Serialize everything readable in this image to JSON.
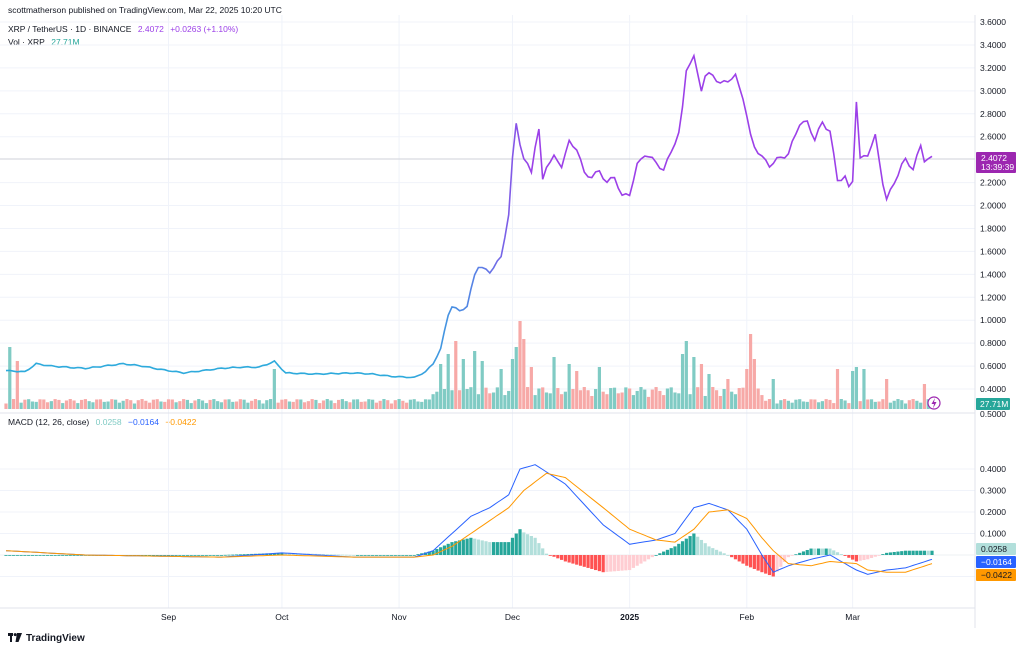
{
  "header": {
    "published": "scottmatherson published on TradingView.com, Mar 22, 2025 10:20 UTC"
  },
  "legend": {
    "symbol": "XRP / TetherUS · 1D · BINANCE",
    "price": "2.4072",
    "change": "+0.0263 (+1.10%)",
    "vol_label": "Vol · XRP",
    "vol_value": "27.71M",
    "macd_label": "MACD (12, 26, close)",
    "macd_hist": "0.0258",
    "macd_line": "−0.0164",
    "macd_signal": "−0.0422"
  },
  "price_axis": {
    "ticks": [
      "3.6000",
      "3.4000",
      "3.2000",
      "3.0000",
      "2.8000",
      "2.6000",
      "2.2000",
      "2.0000",
      "1.8000",
      "1.6000",
      "1.4000",
      "1.2000",
      "1.0000",
      "0.8000",
      "0.6000",
      "0.4000"
    ],
    "last_price": "2.4072",
    "countdown": "13:39:39",
    "vol_badge": "27.71M",
    "bottom_tick": "0.5000"
  },
  "macd_axis": {
    "ticks": [
      "0.4000",
      "0.3000",
      "0.2000",
      "0.1000",
      "−0.1000"
    ],
    "hist_badge": "0.0258",
    "macd_badge": "−0.0164",
    "signal_badge": "−0.0422"
  },
  "time_axis": {
    "labels": [
      "Sep",
      "Oct",
      "Nov",
      "Dec",
      "2025",
      "Feb",
      "Mar"
    ]
  },
  "footer": {
    "brand": "TradingView"
  },
  "colors": {
    "price_line_early": "#2eaadc",
    "price_line_late": "#9c40e8",
    "vol_up": "#80cbc4",
    "vol_down": "#f7a9a7",
    "macd_line": "#2962ff",
    "signal_line": "#ff9800",
    "hist_up_strong": "#26a69a",
    "hist_up_weak": "#b2dfdb",
    "hist_down_strong": "#ff5252",
    "hist_down_weak": "#ffcdd2",
    "badge_purple": "#9c27b0",
    "badge_teal": "#26a69a",
    "badge_blue": "#2962ff",
    "badge_orange": "#ff9800"
  },
  "chart_data": {
    "type": "line",
    "title": "XRP / TetherUS · 1D · BINANCE",
    "x_start": "2024-08-01",
    "x_end": "2025-03-22",
    "ylim": [
      0.2,
      3.6
    ],
    "grid": true,
    "price_keypoints": [
      [
        "2024-07-20",
        0.56
      ],
      [
        "2024-07-25",
        0.55
      ],
      [
        "2024-07-28",
        0.62
      ],
      [
        "2024-08-01",
        0.6
      ],
      [
        "2024-08-05",
        0.59
      ],
      [
        "2024-08-10",
        0.58
      ],
      [
        "2024-08-15",
        0.6
      ],
      [
        "2024-08-20",
        0.62
      ],
      [
        "2024-08-25",
        0.6
      ],
      [
        "2024-08-30",
        0.57
      ],
      [
        "2024-09-05",
        0.54
      ],
      [
        "2024-09-10",
        0.56
      ],
      [
        "2024-09-15",
        0.58
      ],
      [
        "2024-09-20",
        0.59
      ],
      [
        "2024-09-25",
        0.59
      ],
      [
        "2024-09-29",
        0.64
      ],
      [
        "2024-10-02",
        0.54
      ],
      [
        "2024-10-10",
        0.53
      ],
      [
        "2024-10-20",
        0.54
      ],
      [
        "2024-10-25",
        0.53
      ],
      [
        "2024-10-30",
        0.51
      ],
      [
        "2024-11-05",
        0.5
      ],
      [
        "2024-11-08",
        0.55
      ],
      [
        "2024-11-10",
        0.62
      ],
      [
        "2024-11-12",
        0.75
      ],
      [
        "2024-11-14",
        1.05
      ],
      [
        "2024-11-15",
        1.12
      ],
      [
        "2024-11-17",
        1.08
      ],
      [
        "2024-11-19",
        1.12
      ],
      [
        "2024-11-21",
        1.4
      ],
      [
        "2024-11-22",
        1.47
      ],
      [
        "2024-11-25",
        1.42
      ],
      [
        "2024-11-28",
        1.55
      ],
      [
        "2024-11-30",
        1.92
      ],
      [
        "2024-12-01",
        2.4
      ],
      [
        "2024-12-02",
        2.72
      ],
      [
        "2024-12-03",
        2.55
      ],
      [
        "2024-12-04",
        2.4
      ],
      [
        "2024-12-06",
        2.3
      ],
      [
        "2024-12-07",
        2.52
      ],
      [
        "2024-12-08",
        2.65
      ],
      [
        "2024-12-09",
        2.22
      ],
      [
        "2024-12-10",
        2.35
      ],
      [
        "2024-12-12",
        2.42
      ],
      [
        "2024-12-14",
        2.35
      ],
      [
        "2024-12-16",
        2.55
      ],
      [
        "2024-12-18",
        2.5
      ],
      [
        "2024-12-20",
        2.28
      ],
      [
        "2024-12-22",
        2.25
      ],
      [
        "2024-12-24",
        2.3
      ],
      [
        "2024-12-26",
        2.2
      ],
      [
        "2024-12-28",
        2.25
      ],
      [
        "2024-12-30",
        2.08
      ],
      [
        "2025-01-01",
        2.1
      ],
      [
        "2025-01-03",
        2.35
      ],
      [
        "2025-01-05",
        2.45
      ],
      [
        "2025-01-07",
        2.4
      ],
      [
        "2025-01-08",
        2.38
      ],
      [
        "2025-01-10",
        2.3
      ],
      [
        "2025-01-12",
        2.48
      ],
      [
        "2025-01-14",
        2.62
      ],
      [
        "2025-01-15",
        2.85
      ],
      [
        "2025-01-16",
        3.2
      ],
      [
        "2025-01-18",
        3.28
      ],
      [
        "2025-01-20",
        3.02
      ],
      [
        "2025-01-21",
        3.12
      ],
      [
        "2025-01-23",
        3.15
      ],
      [
        "2025-01-25",
        3.05
      ],
      [
        "2025-01-27",
        3.1
      ],
      [
        "2025-01-29",
        3.12
      ],
      [
        "2025-01-31",
        2.95
      ],
      [
        "2025-02-02",
        2.6
      ],
      [
        "2025-02-03",
        2.52
      ],
      [
        "2025-02-05",
        2.42
      ],
      [
        "2025-02-07",
        2.35
      ],
      [
        "2025-02-09",
        2.4
      ],
      [
        "2025-02-12",
        2.45
      ],
      [
        "2025-02-15",
        2.72
      ],
      [
        "2025-02-17",
        2.72
      ],
      [
        "2025-02-19",
        2.58
      ],
      [
        "2025-02-21",
        2.72
      ],
      [
        "2025-02-23",
        2.65
      ],
      [
        "2025-02-25",
        2.22
      ],
      [
        "2025-02-27",
        2.25
      ],
      [
        "2025-02-28",
        2.15
      ],
      [
        "2025-03-01",
        2.22
      ],
      [
        "2025-03-02",
        2.92
      ],
      [
        "2025-03-03",
        2.4
      ],
      [
        "2025-03-05",
        2.45
      ],
      [
        "2025-03-07",
        2.6
      ],
      [
        "2025-03-09",
        2.2
      ],
      [
        "2025-03-10",
        2.05
      ],
      [
        "2025-03-12",
        2.2
      ],
      [
        "2025-03-14",
        2.35
      ],
      [
        "2025-03-15",
        2.4
      ],
      [
        "2025-03-17",
        2.32
      ],
      [
        "2025-03-19",
        2.52
      ],
      [
        "2025-03-20",
        2.4
      ],
      [
        "2025-03-22",
        2.41
      ]
    ],
    "macd_keypoints": [
      [
        "2024-07-20",
        0.02
      ],
      [
        "2024-08-10",
        0.0
      ],
      [
        "2024-09-15",
        -0.01
      ],
      [
        "2024-10-01",
        0.01
      ],
      [
        "2024-10-20",
        -0.01
      ],
      [
        "2024-11-05",
        -0.01
      ],
      [
        "2024-11-10",
        0.02
      ],
      [
        "2024-11-15",
        0.1
      ],
      [
        "2024-11-20",
        0.18
      ],
      [
        "2024-11-25",
        0.22
      ],
      [
        "2024-11-30",
        0.28
      ],
      [
        "2024-12-03",
        0.4
      ],
      [
        "2024-12-07",
        0.42
      ],
      [
        "2024-12-15",
        0.33
      ],
      [
        "2024-12-25",
        0.14
      ],
      [
        "2025-01-01",
        0.05
      ],
      [
        "2025-01-08",
        0.07
      ],
      [
        "2025-01-13",
        0.1
      ],
      [
        "2025-01-18",
        0.22
      ],
      [
        "2025-01-22",
        0.24
      ],
      [
        "2025-01-27",
        0.21
      ],
      [
        "2025-02-01",
        0.12
      ],
      [
        "2025-02-05",
        0.0
      ],
      [
        "2025-02-08",
        -0.08
      ],
      [
        "2025-02-12",
        -0.05
      ],
      [
        "2025-02-18",
        -0.02
      ],
      [
        "2025-02-23",
        0.0
      ],
      [
        "2025-03-02",
        -0.07
      ],
      [
        "2025-03-05",
        -0.09
      ],
      [
        "2025-03-10",
        -0.07
      ],
      [
        "2025-03-15",
        -0.06
      ],
      [
        "2025-03-22",
        -0.02
      ]
    ],
    "signal_keypoints": [
      [
        "2024-07-20",
        0.02
      ],
      [
        "2024-08-10",
        0.0
      ],
      [
        "2024-09-15",
        -0.01
      ],
      [
        "2024-10-01",
        0.0
      ],
      [
        "2024-10-20",
        -0.01
      ],
      [
        "2024-11-05",
        -0.01
      ],
      [
        "2024-11-10",
        0.0
      ],
      [
        "2024-11-15",
        0.04
      ],
      [
        "2024-11-20",
        0.1
      ],
      [
        "2024-11-25",
        0.16
      ],
      [
        "2024-11-30",
        0.22
      ],
      [
        "2024-12-04",
        0.3
      ],
      [
        "2024-12-10",
        0.38
      ],
      [
        "2024-12-15",
        0.36
      ],
      [
        "2024-12-25",
        0.22
      ],
      [
        "2025-01-01",
        0.12
      ],
      [
        "2025-01-08",
        0.07
      ],
      [
        "2025-01-13",
        0.06
      ],
      [
        "2025-01-18",
        0.12
      ],
      [
        "2025-01-22",
        0.2
      ],
      [
        "2025-01-27",
        0.21
      ],
      [
        "2025-02-01",
        0.17
      ],
      [
        "2025-02-05",
        0.08
      ],
      [
        "2025-02-08",
        0.02
      ],
      [
        "2025-02-12",
        -0.04
      ],
      [
        "2025-02-18",
        -0.05
      ],
      [
        "2025-02-23",
        -0.03
      ],
      [
        "2025-03-02",
        -0.04
      ],
      [
        "2025-03-05",
        -0.07
      ],
      [
        "2025-03-10",
        -0.08
      ],
      [
        "2025-03-15",
        -0.08
      ],
      [
        "2025-03-22",
        -0.04
      ]
    ],
    "volume_spikes": [
      [
        "2024-07-21",
        0.62
      ],
      [
        "2024-07-23",
        0.48
      ],
      [
        "2024-09-29",
        0.4
      ],
      [
        "2024-11-12",
        0.45
      ],
      [
        "2024-11-14",
        0.55
      ],
      [
        "2024-11-16",
        0.68
      ],
      [
        "2024-11-18",
        0.5
      ],
      [
        "2024-11-21",
        0.58
      ],
      [
        "2024-11-23",
        0.48
      ],
      [
        "2024-11-28",
        0.4
      ],
      [
        "2024-12-01",
        0.5
      ],
      [
        "2024-12-02",
        0.62
      ],
      [
        "2024-12-03",
        0.88
      ],
      [
        "2024-12-04",
        0.7
      ],
      [
        "2024-12-06",
        0.42
      ],
      [
        "2024-12-12",
        0.52
      ],
      [
        "2024-12-16",
        0.45
      ],
      [
        "2024-12-18",
        0.38
      ],
      [
        "2024-12-24",
        0.42
      ],
      [
        "2025-01-15",
        0.55
      ],
      [
        "2025-01-16",
        0.68
      ],
      [
        "2025-01-18",
        0.52
      ],
      [
        "2025-01-20",
        0.45
      ],
      [
        "2025-01-22",
        0.35
      ],
      [
        "2025-01-27",
        0.3
      ],
      [
        "2025-02-01",
        0.4
      ],
      [
        "2025-02-02",
        0.75
      ],
      [
        "2025-02-03",
        0.5
      ],
      [
        "2025-02-08",
        0.3
      ],
      [
        "2025-02-25",
        0.4
      ],
      [
        "2025-03-01",
        0.38
      ],
      [
        "2025-03-02",
        0.42
      ],
      [
        "2025-03-04",
        0.4
      ],
      [
        "2025-03-10",
        0.3
      ],
      [
        "2025-03-20",
        0.25
      ]
    ]
  }
}
